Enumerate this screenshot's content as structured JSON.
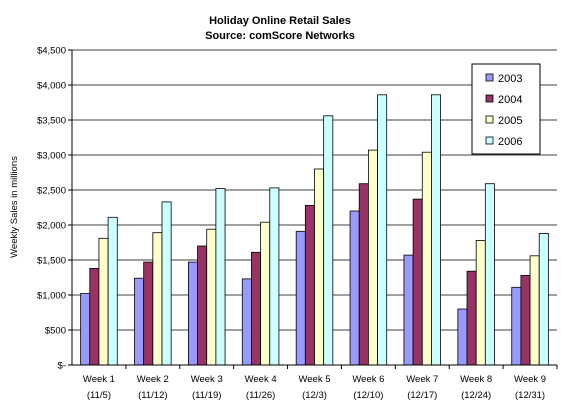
{
  "chart_data": {
    "type": "bar",
    "title": "Holiday Online Retail Sales",
    "subtitle": "Source: comScore Networks",
    "xlabel": "",
    "ylabel": "Weekly Sales in millions",
    "ylim": [
      0,
      4500
    ],
    "yticks": [
      "$-",
      "$500",
      "$1,000",
      "$1,500",
      "$2,000",
      "$2,500",
      "$3,000",
      "$3,500",
      "$4,000",
      "$4,500"
    ],
    "ytick_values": [
      0,
      500,
      1000,
      1500,
      2000,
      2500,
      3000,
      3500,
      4000,
      4500
    ],
    "categories": [
      "Week 1",
      "Week 2",
      "Week 3",
      "Week 4",
      "Week 5",
      "Week 6",
      "Week 7",
      "Week 8",
      "Week 9"
    ],
    "category_dates": [
      "(11/5)",
      "(11/12)",
      "(11/19)",
      "(11/26)",
      "(12/3)",
      "(12/10)",
      "(12/17)",
      "(12/24)",
      "(12/31)"
    ],
    "grid": "horizontal",
    "legend_position": "top-right",
    "series": [
      {
        "name": "2003",
        "color": "#9999ff",
        "values": [
          1020,
          1240,
          1470,
          1230,
          1910,
          2200,
          1570,
          800,
          1110
        ]
      },
      {
        "name": "2004",
        "color": "#993366",
        "values": [
          1380,
          1470,
          1700,
          1610,
          2280,
          2590,
          2370,
          1340,
          1280
        ]
      },
      {
        "name": "2005",
        "color": "#ffffcc",
        "values": [
          1810,
          1890,
          1940,
          2040,
          2800,
          3070,
          3040,
          1780,
          1560
        ]
      },
      {
        "name": "2006",
        "color": "#ccffff",
        "values": [
          2110,
          2330,
          2520,
          2530,
          3560,
          3860,
          3860,
          2590,
          1880
        ]
      }
    ]
  }
}
